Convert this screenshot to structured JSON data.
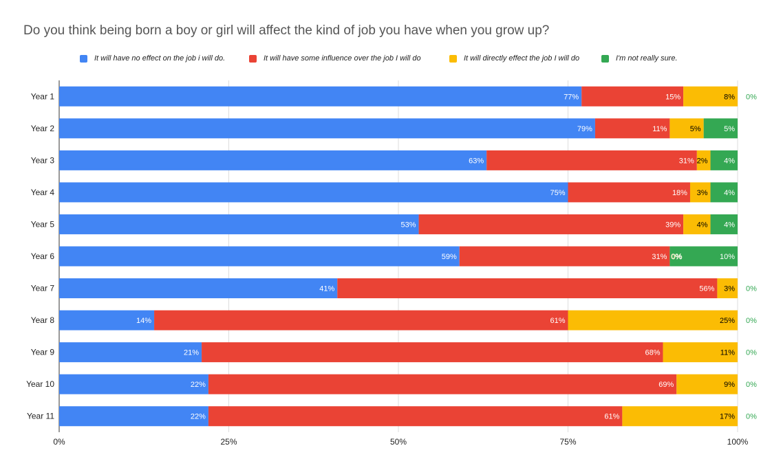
{
  "chart_data": {
    "type": "bar",
    "orientation": "horizontal",
    "stacked": true,
    "title": "Do you think being born a boy or girl will affect the kind of job you have when you grow up?",
    "categories": [
      "Year 1",
      "Year 2",
      "Year 3",
      "Year 4",
      "Year 5",
      "Year 6",
      "Year 7",
      "Year 8",
      "Year 9",
      "Year 10",
      "Year 11"
    ],
    "series": [
      {
        "name": "It will have no effect on the job i will do.",
        "color": "#4285f4",
        "label_color": "#ffffff",
        "values": [
          77,
          79,
          63,
          75,
          53,
          59,
          41,
          14,
          21,
          22,
          22
        ]
      },
      {
        "name": "It will have some influence over the job I will do",
        "color": "#ea4335",
        "label_color": "#ffffff",
        "values": [
          15,
          11,
          31,
          18,
          39,
          31,
          56,
          61,
          68,
          69,
          61
        ]
      },
      {
        "name": "It will directly effect the job I will do",
        "color": "#fbbc04",
        "label_color": "#000000",
        "values": [
          8,
          5,
          2,
          3,
          4,
          0,
          3,
          25,
          11,
          9,
          17
        ]
      },
      {
        "name": "I'm not really sure.",
        "color": "#34a853",
        "label_color": "#ffffff",
        "values": [
          0,
          5,
          4,
          4,
          4,
          10,
          0,
          0,
          0,
          0,
          0
        ]
      }
    ],
    "value_labels": [
      [
        "77%",
        "15%",
        "8%",
        "0%"
      ],
      [
        "79%",
        "11%",
        "5%",
        "5%"
      ],
      [
        "63%",
        "31%",
        "2%",
        "4%"
      ],
      [
        "75%",
        "18%",
        "3%",
        "4%"
      ],
      [
        "53%",
        "39%",
        "4%",
        "4%"
      ],
      [
        "59%",
        "31%",
        "0%",
        "10%"
      ],
      [
        "41%",
        "56%",
        "3%",
        "0%"
      ],
      [
        "14%",
        "61%",
        "25%",
        "0%"
      ],
      [
        "21%",
        "68%",
        "11%",
        "0%"
      ],
      [
        "22%",
        "69%",
        "9%",
        "0%"
      ],
      [
        "22%",
        "61%",
        "17%",
        "0%"
      ]
    ],
    "xaxis": {
      "ticks": [
        "0%",
        "25%",
        "50%",
        "75%",
        "100%"
      ],
      "range": [
        0,
        100
      ]
    },
    "grid": true,
    "legend_position": "top"
  }
}
